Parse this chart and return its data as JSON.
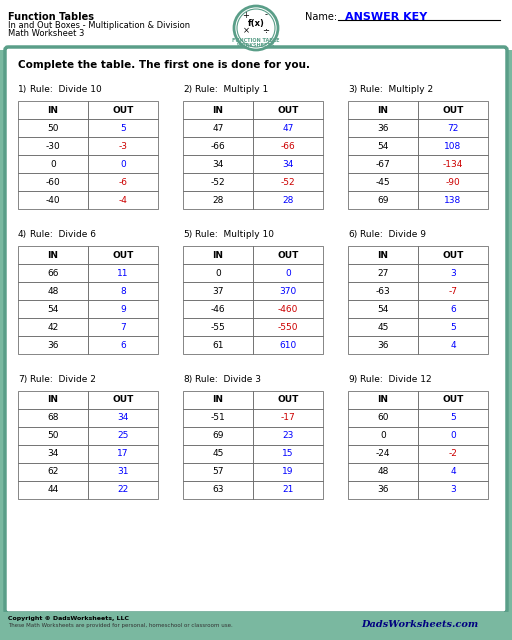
{
  "title_line1": "Function Tables",
  "title_line2": "In and Out Boxes - Multiplication & Division",
  "title_line3": "Math Worksheet 3",
  "name_label": "Name:",
  "answer_key": "ANSWER KEY",
  "instruction": "Complete the table. The first one is done for you.",
  "bg_color": "#7ab8a0",
  "inner_bg": "#ffffff",
  "teal_color": "#5a9e88",
  "blue_answer": "#3333ff",
  "red_answer": "#cc0000",
  "tables": [
    {
      "num": "1)",
      "rule": "Rule:  Divide 10",
      "headers": [
        "IN",
        "OUT"
      ],
      "rows": [
        [
          "50",
          "5"
        ],
        [
          "-30",
          "-3"
        ],
        [
          "0",
          "0"
        ],
        [
          "-60",
          "-6"
        ],
        [
          "-40",
          "-4"
        ]
      ],
      "out_color": [
        "blue",
        "red",
        "blue",
        "red",
        "red"
      ]
    },
    {
      "num": "2)",
      "rule": "Rule:  Multiply 1",
      "headers": [
        "IN",
        "OUT"
      ],
      "rows": [
        [
          "47",
          "47"
        ],
        [
          "-66",
          "-66"
        ],
        [
          "34",
          "34"
        ],
        [
          "-52",
          "-52"
        ],
        [
          "28",
          "28"
        ]
      ],
      "out_color": [
        "blue",
        "red",
        "blue",
        "red",
        "blue"
      ]
    },
    {
      "num": "3)",
      "rule": "Rule:  Multiply 2",
      "headers": [
        "IN",
        "OUT"
      ],
      "rows": [
        [
          "36",
          "72"
        ],
        [
          "54",
          "108"
        ],
        [
          "-67",
          "-134"
        ],
        [
          "-45",
          "-90"
        ],
        [
          "69",
          "138"
        ]
      ],
      "out_color": [
        "blue",
        "blue",
        "red",
        "red",
        "blue"
      ]
    },
    {
      "num": "4)",
      "rule": "Rule:  Divide 6",
      "headers": [
        "IN",
        "OUT"
      ],
      "rows": [
        [
          "66",
          "11"
        ],
        [
          "48",
          "8"
        ],
        [
          "54",
          "9"
        ],
        [
          "42",
          "7"
        ],
        [
          "36",
          "6"
        ]
      ],
      "out_color": [
        "blue",
        "blue",
        "blue",
        "blue",
        "blue"
      ]
    },
    {
      "num": "5)",
      "rule": "Rule:  Multiply 10",
      "headers": [
        "IN",
        "OUT"
      ],
      "rows": [
        [
          "0",
          "0"
        ],
        [
          "37",
          "370"
        ],
        [
          "-46",
          "-460"
        ],
        [
          "-55",
          "-550"
        ],
        [
          "61",
          "610"
        ]
      ],
      "out_color": [
        "blue",
        "blue",
        "red",
        "red",
        "blue"
      ]
    },
    {
      "num": "6)",
      "rule": "Rule:  Divide 9",
      "headers": [
        "IN",
        "OUT"
      ],
      "rows": [
        [
          "27",
          "3"
        ],
        [
          "-63",
          "-7"
        ],
        [
          "54",
          "6"
        ],
        [
          "45",
          "5"
        ],
        [
          "36",
          "4"
        ]
      ],
      "out_color": [
        "blue",
        "red",
        "blue",
        "blue",
        "blue"
      ]
    },
    {
      "num": "7)",
      "rule": "Rule:  Divide 2",
      "headers": [
        "IN",
        "OUT"
      ],
      "rows": [
        [
          "68",
          "34"
        ],
        [
          "50",
          "25"
        ],
        [
          "34",
          "17"
        ],
        [
          "62",
          "31"
        ],
        [
          "44",
          "22"
        ]
      ],
      "out_color": [
        "blue",
        "blue",
        "blue",
        "blue",
        "blue"
      ]
    },
    {
      "num": "8)",
      "rule": "Rule:  Divide 3",
      "headers": [
        "IN",
        "OUT"
      ],
      "rows": [
        [
          "-51",
          "-17"
        ],
        [
          "69",
          "23"
        ],
        [
          "45",
          "15"
        ],
        [
          "57",
          "19"
        ],
        [
          "63",
          "21"
        ]
      ],
      "out_color": [
        "red",
        "blue",
        "blue",
        "blue",
        "blue"
      ]
    },
    {
      "num": "9)",
      "rule": "Rule:  Divide 12",
      "headers": [
        "IN",
        "OUT"
      ],
      "rows": [
        [
          "60",
          "5"
        ],
        [
          "0",
          "0"
        ],
        [
          "-24",
          "-2"
        ],
        [
          "48",
          "4"
        ],
        [
          "36",
          "3"
        ]
      ],
      "out_color": [
        "blue",
        "blue",
        "red",
        "blue",
        "blue"
      ]
    }
  ],
  "footer_text": "Copyright © DadsWorksheets, LLC",
  "footer_text2": "These Math Worksheets are provided for personal, homeschool or classroom use."
}
